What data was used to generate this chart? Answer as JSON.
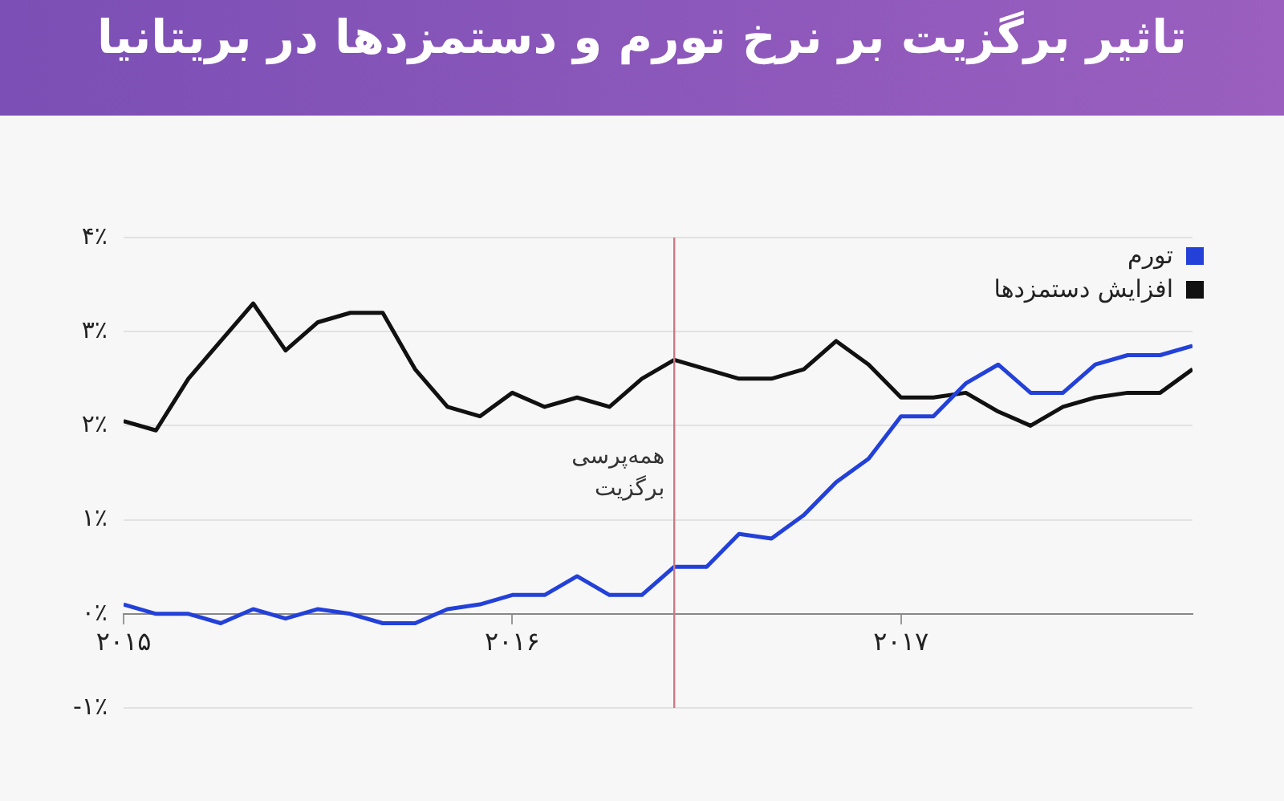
{
  "chart_data": {
    "type": "line",
    "title": "تاثیر برگزیت بر نرخ تورم و دستمزدها در بریتانیا",
    "x": [
      2015,
      2015.0833,
      2015.1667,
      2015.25,
      2015.3333,
      2015.4167,
      2015.5,
      2015.5833,
      2015.6667,
      2015.75,
      2015.8333,
      2015.9167,
      2016,
      2016.0833,
      2016.1667,
      2016.25,
      2016.3333,
      2016.4167,
      2016.5,
      2016.5833,
      2016.6667,
      2016.75,
      2016.8333,
      2016.9167,
      2017,
      2017.0833,
      2017.1667,
      2017.25,
      2017.3333,
      2017.4167,
      2017.5,
      2017.5833,
      2017.6667,
      2017.75
    ],
    "series": [
      {
        "name": "تورم",
        "color": "#2341d8",
        "values": [
          0.1,
          0.0,
          0.0,
          -0.1,
          0.05,
          -0.05,
          0.05,
          0.0,
          -0.1,
          -0.1,
          0.05,
          0.1,
          0.2,
          0.2,
          0.4,
          0.2,
          0.2,
          0.5,
          0.5,
          0.85,
          0.8,
          1.05,
          1.4,
          1.65,
          2.1,
          2.1,
          2.45,
          2.65,
          2.35,
          2.35,
          2.65,
          2.75,
          2.75,
          2.85
        ]
      },
      {
        "name": "افزایش دستمزدها",
        "color": "#111111",
        "values": [
          2.05,
          1.95,
          2.5,
          2.9,
          3.3,
          2.8,
          3.1,
          3.2,
          3.2,
          2.6,
          2.2,
          2.1,
          2.35,
          2.2,
          2.3,
          2.2,
          2.5,
          2.7,
          2.6,
          2.5,
          2.5,
          2.6,
          2.9,
          2.65,
          2.3,
          2.3,
          2.35,
          2.15,
          2.0,
          2.2,
          2.3,
          2.35,
          2.35,
          2.6
        ]
      }
    ],
    "xlim": [
      2015,
      2017.75
    ],
    "xticks": [
      {
        "value": 2015,
        "label": "۲۰۱۵"
      },
      {
        "value": 2016,
        "label": "۲۰۱۶"
      },
      {
        "value": 2017,
        "label": "۲۰۱۷"
      }
    ],
    "ylim": [
      -1,
      4
    ],
    "yticks": [
      {
        "value": -1,
        "label": "-۱٪"
      },
      {
        "value": 0,
        "label": "۰٪"
      },
      {
        "value": 1,
        "label": "۱٪"
      },
      {
        "value": 2,
        "label": "۲٪"
      },
      {
        "value": 3,
        "label": "۳٪"
      },
      {
        "value": 4,
        "label": "۴٪"
      }
    ],
    "ref_lines": [
      {
        "axis": "x",
        "value": 2016.4167,
        "label": "همه‌پرسی برگزیت",
        "color": "#c97a84"
      }
    ],
    "grid": "y",
    "legend": "top right",
    "marker": "none",
    "line_style": "solid"
  }
}
